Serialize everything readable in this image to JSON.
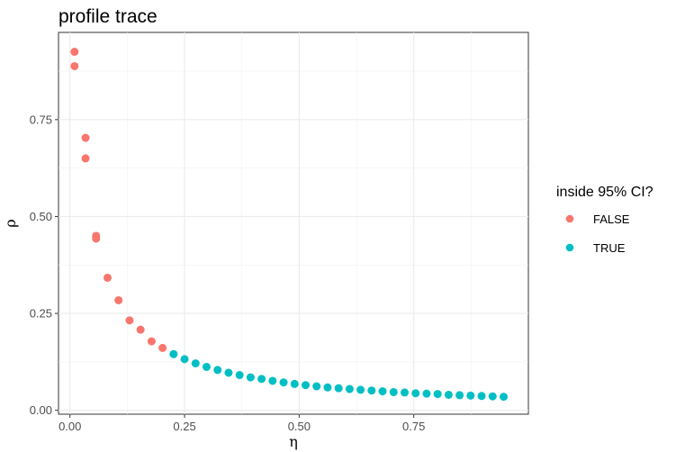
{
  "chart_data": {
    "type": "scatter",
    "title": "profile trace",
    "xlabel": "η",
    "ylabel": "ρ",
    "xlim": [
      -0.025,
      1.0
    ],
    "ylim": [
      -0.01,
      0.975
    ],
    "x_ticks": [
      0.0,
      0.25,
      0.5,
      0.75
    ],
    "x_tick_labels": [
      "0.00",
      "0.25",
      "0.50",
      "0.75"
    ],
    "y_ticks": [
      0.0,
      0.25,
      0.5,
      0.75
    ],
    "y_tick_labels": [
      "0.00",
      "0.25",
      "0.50",
      "0.75"
    ],
    "grid": true,
    "legend": {
      "title": "inside 95% CI?",
      "placement": "right",
      "entries": [
        {
          "label": "FALSE",
          "color": "#F8766D"
        },
        {
          "label": "TRUE",
          "color": "#00BFC4"
        }
      ]
    },
    "series": [
      {
        "name": "FALSE",
        "color": "#F8766D",
        "points": [
          [
            0.01,
            0.925
          ],
          [
            0.01,
            0.888
          ],
          [
            0.034,
            0.703
          ],
          [
            0.034,
            0.65
          ],
          [
            0.057,
            0.45
          ],
          [
            0.057,
            0.443
          ],
          [
            0.082,
            0.342
          ],
          [
            0.106,
            0.284
          ],
          [
            0.13,
            0.232
          ],
          [
            0.154,
            0.208
          ],
          [
            0.178,
            0.178
          ],
          [
            0.202,
            0.161
          ]
        ]
      },
      {
        "name": "TRUE",
        "color": "#00BFC4",
        "points": [
          [
            0.226,
            0.145
          ],
          [
            0.25,
            0.132
          ],
          [
            0.274,
            0.121
          ],
          [
            0.298,
            0.112
          ],
          [
            0.322,
            0.104
          ],
          [
            0.346,
            0.097
          ],
          [
            0.37,
            0.091
          ],
          [
            0.394,
            0.085
          ],
          [
            0.418,
            0.081
          ],
          [
            0.442,
            0.076
          ],
          [
            0.466,
            0.072
          ],
          [
            0.49,
            0.068
          ],
          [
            0.514,
            0.065
          ],
          [
            0.538,
            0.062
          ],
          [
            0.562,
            0.059
          ],
          [
            0.586,
            0.057
          ],
          [
            0.61,
            0.055
          ],
          [
            0.634,
            0.053
          ],
          [
            0.658,
            0.051
          ],
          [
            0.682,
            0.049
          ],
          [
            0.706,
            0.047
          ],
          [
            0.73,
            0.046
          ],
          [
            0.754,
            0.044
          ],
          [
            0.778,
            0.043
          ],
          [
            0.802,
            0.042
          ],
          [
            0.826,
            0.04
          ],
          [
            0.85,
            0.039
          ],
          [
            0.874,
            0.038
          ],
          [
            0.898,
            0.037
          ],
          [
            0.922,
            0.036
          ],
          [
            0.946,
            0.035
          ]
        ]
      }
    ]
  }
}
